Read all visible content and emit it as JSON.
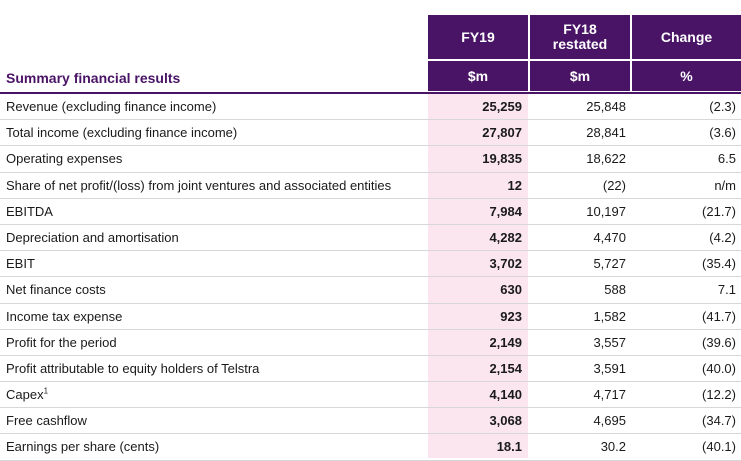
{
  "header": {
    "columns": [
      {
        "title": "FY19",
        "unit": "$m"
      },
      {
        "title": "FY18\nrestated",
        "title_line1": "FY18",
        "title_line2": "restated",
        "unit": "$m"
      },
      {
        "title": "Change",
        "unit": "%"
      }
    ]
  },
  "section_title": "Summary financial results",
  "rows": [
    {
      "label": "Revenue (excluding finance income)",
      "fy19": "25,259",
      "fy18": "25,848",
      "change": "(2.3)"
    },
    {
      "label": "Total income (excluding finance income)",
      "fy19": "27,807",
      "fy18": "28,841",
      "change": "(3.6)"
    },
    {
      "label": "Operating expenses",
      "fy19": "19,835",
      "fy18": "18,622",
      "change": "6.5"
    },
    {
      "label": "Share of net profit/(loss) from joint ventures and associated entities",
      "fy19": "12",
      "fy18": "(22)",
      "change": "n/m"
    },
    {
      "label": "EBITDA",
      "fy19": "7,984",
      "fy18": "10,197",
      "change": "(21.7)"
    },
    {
      "label": "Depreciation and amortisation",
      "fy19": "4,282",
      "fy18": "4,470",
      "change": "(4.2)"
    },
    {
      "label": "EBIT",
      "fy19": "3,702",
      "fy18": "5,727",
      "change": "(35.4)"
    },
    {
      "label": "Net finance costs",
      "fy19": "630",
      "fy18": "588",
      "change": "7.1"
    },
    {
      "label": "Income tax expense",
      "fy19": "923",
      "fy18": "1,582",
      "change": "(41.7)"
    },
    {
      "label": "Profit for the period",
      "fy19": "2,149",
      "fy18": "3,557",
      "change": "(39.6)"
    },
    {
      "label": "Profit attributable to equity holders of Telstra",
      "fy19": "2,154",
      "fy18": "3,591",
      "change": "(40.0)"
    },
    {
      "label": "Capex",
      "footnote": "1",
      "fy19": "4,140",
      "fy18": "4,717",
      "change": "(12.2)"
    },
    {
      "label": "Free cashflow",
      "fy19": "3,068",
      "fy18": "4,695",
      "change": "(34.7)"
    },
    {
      "label": "Earnings per share (cents)",
      "fy19": "18.1",
      "fy18": "30.2",
      "change": "(40.1)"
    }
  ],
  "colors": {
    "header_bg": "#4a1466",
    "fy19_column_bg": "#fbe6ef",
    "row_rule": "#d7d7d7"
  }
}
